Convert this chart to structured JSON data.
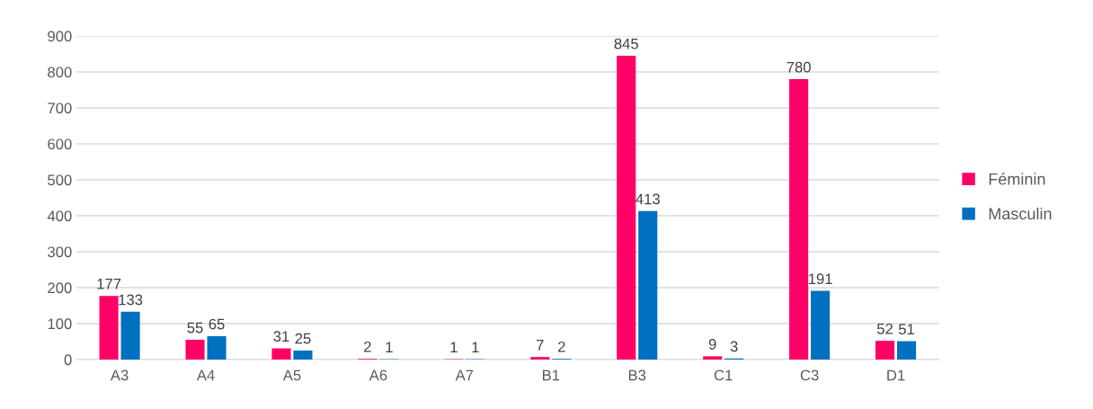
{
  "chart_data": {
    "type": "bar",
    "categories": [
      "A3",
      "A4",
      "A5",
      "A6",
      "A7",
      "B1",
      "B3",
      "C1",
      "C3",
      "D1"
    ],
    "series": [
      {
        "name": "Féminin",
        "color": "#ff0066",
        "values": [
          177,
          55,
          31,
          2,
          1,
          7,
          845,
          9,
          780,
          52
        ]
      },
      {
        "name": "Masculin",
        "color": "#0070c0",
        "values": [
          133,
          65,
          25,
          1,
          1,
          2,
          413,
          3,
          191,
          51
        ]
      }
    ],
    "ylim": [
      0,
      900
    ],
    "yticks": [
      0,
      100,
      200,
      300,
      400,
      500,
      600,
      700,
      800,
      900
    ],
    "grid": "y",
    "legend": "right",
    "data_labels": true
  }
}
